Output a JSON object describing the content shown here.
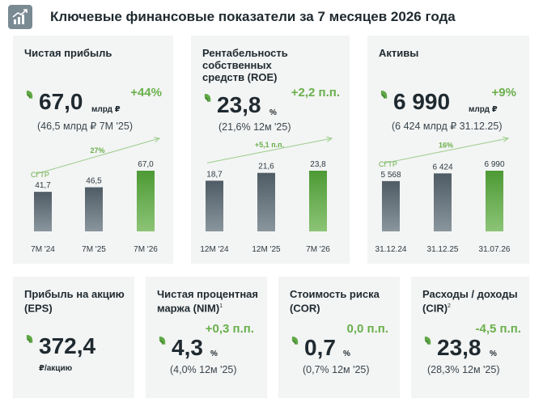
{
  "header": {
    "title": "Ключевые финансовые показатели за 7 месяцев 2026 года",
    "logo_icon": "growth-chart-icon"
  },
  "colors": {
    "accent": "#6ab04c",
    "bar_gray": "#6f7c85",
    "bar_green": "#5ea845",
    "card_bg": "#f3f4f4"
  },
  "cards_top": [
    {
      "title": "Чистая прибыль",
      "value": "67,0",
      "unit": "млрд ₽",
      "change": "+44%",
      "previous": "(46,5 млрд ₽  7М '25)"
    },
    {
      "title": "Рентабельность\nсобственных\nсредств (ROE)",
      "value": "23,8",
      "unit": "%",
      "change": "+2,2 п.п.",
      "previous": "(21,6%  12м '25)"
    },
    {
      "title": "Активы",
      "value": "6 990",
      "unit": "млрд ₽",
      "change": "+9%",
      "previous": "(6 424 млрд ₽  31.12.25)"
    }
  ],
  "cards_bottom": [
    {
      "title": "Прибыль на акцию\n(EPS)",
      "sup": "",
      "value": "372,4",
      "unit": "₽/акцию",
      "change": "",
      "previous": ""
    },
    {
      "title": "Чистая процентная\nмаржа (NIM)",
      "sup": "1",
      "value": "4,3",
      "unit": "%",
      "change": "+0,3 п.п.",
      "previous": "(4,0%  12м '25)"
    },
    {
      "title": "Стоимость риска\n(COR)",
      "sup": "",
      "value": "0,7",
      "unit": "%",
      "change": "0,0 п.п.",
      "previous": "(0,7%  12м '25)"
    },
    {
      "title": "Расходы / доходы\n(CIR)",
      "sup": "2",
      "value": "23,8",
      "unit": "%",
      "change": "-4,5 п.п.",
      "previous": "(28,3%  12м '25)"
    }
  ],
  "chart_data": [
    {
      "type": "bar",
      "categories": [
        "7М '24",
        "7М '25",
        "7М '26"
      ],
      "values": [
        41.7,
        46.5,
        67.0
      ],
      "value_labels": [
        "41,7",
        "46,5",
        "67,0"
      ],
      "highlight_index": 2,
      "trend_label": "СГТР",
      "trend_value": "27%",
      "ylim": [
        0,
        80
      ]
    },
    {
      "type": "bar",
      "categories": [
        "12М '24",
        "12М '25",
        "7М '26"
      ],
      "values": [
        18.7,
        21.6,
        23.8
      ],
      "value_labels": [
        "18,7",
        "21,6",
        "23,8"
      ],
      "highlight_index": 2,
      "trend_label": "",
      "trend_value": "+5,1 п.п.",
      "ylim": [
        0,
        28
      ]
    },
    {
      "type": "bar",
      "categories": [
        "31.12.24",
        "31.12.25",
        "31.07.26"
      ],
      "values": [
        5568,
        6424,
        6990
      ],
      "value_labels": [
        "5 568",
        "6 424",
        "6 990"
      ],
      "highlight_index": 2,
      "trend_label": "СГТР",
      "trend_value": "16%",
      "ylim": [
        0,
        8400
      ]
    }
  ]
}
